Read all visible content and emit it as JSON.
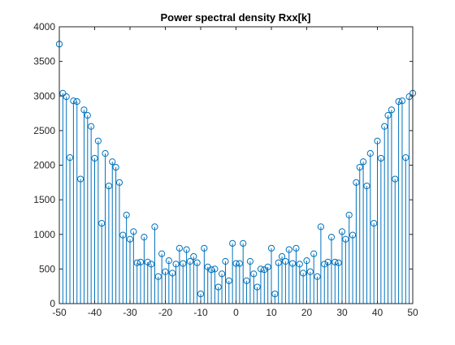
{
  "chart_data": {
    "type": "stem",
    "title": "Power spectral density Rxx[k]",
    "xlabel": "",
    "ylabel": "",
    "xlim": [
      -50,
      50
    ],
    "ylim": [
      0,
      4000
    ],
    "xticks": [
      -50,
      -40,
      -30,
      -20,
      -10,
      0,
      10,
      20,
      30,
      40,
      50
    ],
    "yticks": [
      0,
      500,
      1000,
      1500,
      2000,
      2500,
      3000,
      3500,
      4000
    ],
    "grid": false,
    "legend": "none",
    "color": "#0072bd",
    "series": [
      {
        "x": [
          -50,
          -49,
          -48,
          -47,
          -46,
          -45,
          -44,
          -43,
          -42,
          -41,
          -40,
          -39,
          -38,
          -37,
          -36,
          -35,
          -34,
          -33,
          -32,
          -31,
          -30,
          -29,
          -28,
          -27,
          -26,
          -25,
          -24,
          -23,
          -22,
          -21,
          -20,
          -19,
          -18,
          -17,
          -16,
          -15,
          -14,
          -13,
          -12,
          -11,
          -10,
          -9,
          -8,
          -7,
          -6,
          -5,
          -4,
          -3,
          -2,
          -1,
          0,
          1,
          2,
          3,
          4,
          5,
          6,
          7,
          8,
          9,
          10,
          11,
          12,
          13,
          14,
          15,
          16,
          17,
          18,
          19,
          20,
          21,
          22,
          23,
          24,
          25,
          26,
          27,
          28,
          29,
          30,
          31,
          32,
          33,
          34,
          35,
          36,
          37,
          38,
          39,
          40,
          41,
          42,
          43,
          44,
          45,
          46,
          47,
          48,
          49,
          50
        ],
        "y": [
          3750,
          3040,
          2990,
          2110,
          2930,
          2920,
          1800,
          2800,
          2720,
          2560,
          2100,
          2350,
          1160,
          2170,
          1700,
          2050,
          1970,
          1750,
          990,
          1280,
          930,
          1040,
          590,
          600,
          960,
          600,
          570,
          1110,
          390,
          720,
          460,
          620,
          440,
          570,
          800,
          580,
          780,
          610,
          680,
          590,
          140,
          800,
          530,
          490,
          500,
          240,
          430,
          610,
          330,
          870,
          580,
          580,
          870,
          330,
          610,
          430,
          240,
          500,
          490,
          530,
          800,
          140,
          590,
          680,
          610,
          780,
          580,
          800,
          570,
          440,
          620,
          460,
          720,
          390,
          1110,
          570,
          600,
          960,
          600,
          590,
          1040,
          930,
          1280,
          990,
          1750,
          1970,
          2050,
          1700,
          2170,
          1160,
          2350,
          2100,
          2560,
          2720,
          2800,
          1800,
          2920,
          2930,
          2110,
          2990,
          3040
        ]
      }
    ]
  }
}
